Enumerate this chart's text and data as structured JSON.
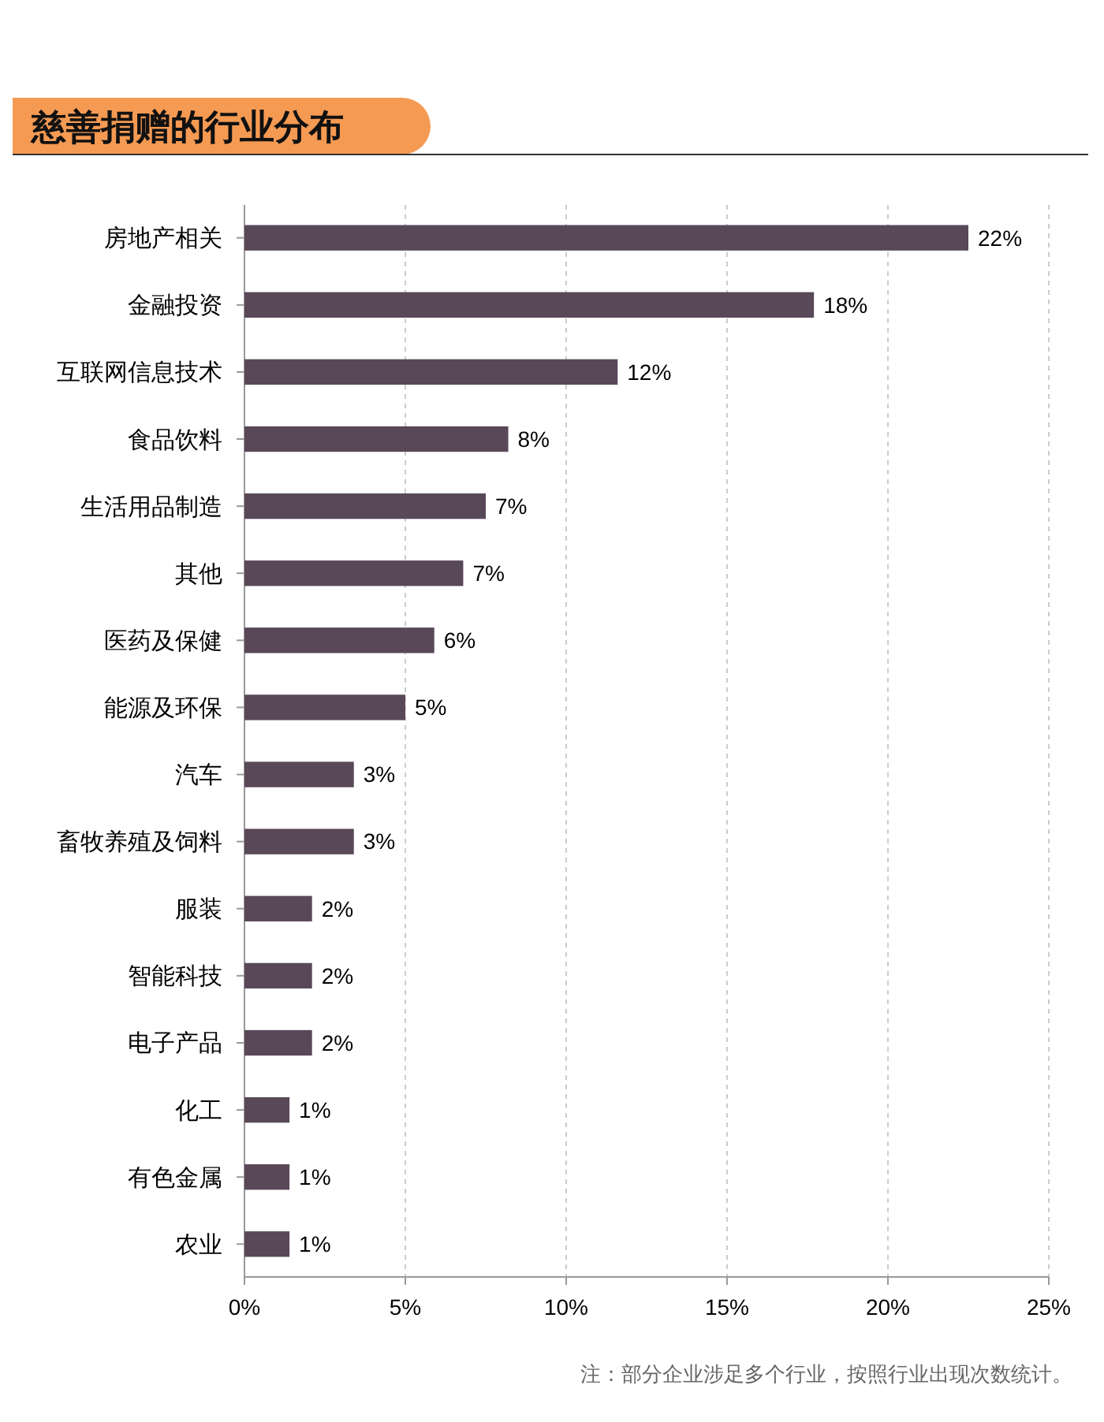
{
  "chart_data": {
    "type": "bar",
    "orientation": "horizontal",
    "title": "慈善捐赠的行业分布",
    "categories": [
      "房地产相关",
      "金融投资",
      "互联网信息技术",
      "食品饮料",
      "生活用品制造",
      "其他",
      "医药及保健",
      "能源及环保",
      "汽车",
      "畜牧养殖及饲料",
      "服装",
      "智能科技",
      "电子产品",
      "化工",
      "有色金属",
      "农业"
    ],
    "values": [
      22.5,
      17.7,
      11.6,
      8.2,
      7.5,
      6.8,
      5.9,
      5.0,
      3.4,
      3.4,
      2.1,
      2.1,
      2.1,
      1.4,
      1.4,
      1.4
    ],
    "value_labels": [
      "22%",
      "18%",
      "12%",
      "8%",
      "7%",
      "7%",
      "6%",
      "5%",
      "3%",
      "3%",
      "2%",
      "2%",
      "2%",
      "1%",
      "1%",
      "1%"
    ],
    "color": "#584858",
    "xlim": [
      0,
      25
    ],
    "xticks": [
      {
        "value": 0,
        "label": "0%"
      },
      {
        "value": 5,
        "label": "5%"
      },
      {
        "value": 10,
        "label": "10%"
      },
      {
        "value": 15,
        "label": "15%"
      },
      {
        "value": 20,
        "label": "20%"
      },
      {
        "value": 25,
        "label": "25%"
      }
    ],
    "grid": "x",
    "annotations": [
      "注：部分企业涉足多个行业，按照行业出现次数统计。"
    ]
  }
}
